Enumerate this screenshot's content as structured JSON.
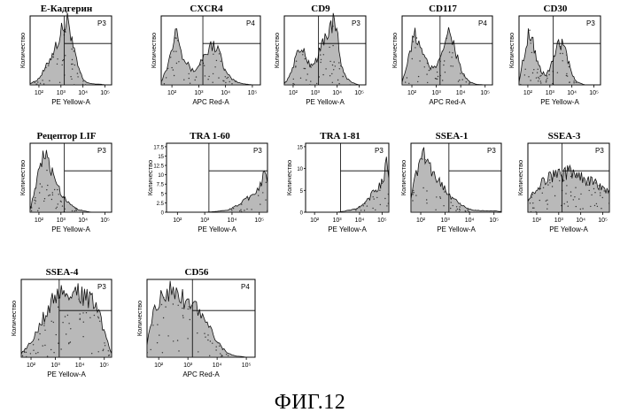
{
  "figure_caption": "ФИГ.12",
  "chart_data": [
    {
      "type": "area",
      "title": "E-Кадгерин",
      "xlabel": "PE Yellow-A",
      "ylabel": "Количество",
      "gate": "P3",
      "x_tick_labels": [
        "10²",
        "10³",
        "10⁴",
        "10⁵"
      ],
      "y_tick_labels": [],
      "xlim": [
        1.6,
        5.3
      ],
      "x": [
        1.6,
        1.8,
        2.0,
        2.2,
        2.4,
        2.6,
        2.8,
        3.0,
        3.1,
        3.2,
        3.3,
        3.4,
        3.5,
        3.6,
        3.8,
        4.0,
        4.2,
        4.4,
        4.6,
        4.8,
        5.0,
        5.3
      ],
      "values": [
        0.02,
        0.05,
        0.1,
        0.2,
        0.32,
        0.48,
        0.62,
        0.78,
        0.92,
        0.85,
        0.98,
        0.9,
        0.7,
        0.5,
        0.25,
        0.08,
        0.03,
        0.02,
        0.01,
        0.01,
        0.0,
        0.0
      ]
    },
    {
      "type": "area",
      "title": "CXCR4",
      "xlabel": "APC Red-A",
      "ylabel": "Количество",
      "gate": "P4",
      "x_tick_labels": [
        "10²",
        "10³",
        "10⁴",
        "10⁵"
      ],
      "y_tick_labels": [],
      "xlim": [
        1.6,
        5.3
      ],
      "x": [
        1.6,
        1.8,
        2.0,
        2.1,
        2.2,
        2.3,
        2.4,
        2.6,
        2.8,
        3.0,
        3.2,
        3.4,
        3.5,
        3.6,
        3.7,
        3.8,
        3.9,
        4.0,
        4.2,
        4.4,
        4.6,
        5.0,
        5.3
      ],
      "values": [
        0.05,
        0.25,
        0.55,
        0.85,
        0.92,
        0.7,
        0.45,
        0.3,
        0.2,
        0.3,
        0.45,
        0.55,
        0.62,
        0.6,
        0.55,
        0.45,
        0.3,
        0.2,
        0.1,
        0.05,
        0.02,
        0.0,
        0.0
      ]
    },
    {
      "type": "area",
      "title": "CD9",
      "xlabel": "PE Yellow-A",
      "ylabel": "Количество",
      "gate": "P3",
      "x_tick_labels": [
        "10²",
        "10³",
        "10⁴",
        "10⁵"
      ],
      "y_tick_labels": [],
      "xlim": [
        1.6,
        5.3
      ],
      "x": [
        1.6,
        1.8,
        2.0,
        2.2,
        2.4,
        2.6,
        2.8,
        3.0,
        3.2,
        3.4,
        3.6,
        3.8,
        3.9,
        4.0,
        4.1,
        4.2,
        4.4,
        4.6,
        4.8,
        5.0,
        5.3
      ],
      "values": [
        0.02,
        0.1,
        0.3,
        0.5,
        0.55,
        0.4,
        0.3,
        0.35,
        0.5,
        0.7,
        0.82,
        0.95,
        0.9,
        0.75,
        0.5,
        0.3,
        0.12,
        0.05,
        0.02,
        0.0,
        0.0
      ]
    },
    {
      "type": "area",
      "title": "CD117",
      "xlabel": "APC Red-A",
      "ylabel": "Количество",
      "gate": "P4",
      "x_tick_labels": [
        "10²",
        "10³",
        "10⁴",
        "10⁵"
      ],
      "y_tick_labels": [],
      "xlim": [
        1.6,
        5.3
      ],
      "x": [
        1.6,
        1.8,
        2.0,
        2.1,
        2.2,
        2.4,
        2.6,
        2.8,
        3.0,
        3.2,
        3.4,
        3.5,
        3.6,
        3.7,
        3.8,
        4.0,
        4.2,
        4.4,
        4.6,
        5.0,
        5.3
      ],
      "values": [
        0.05,
        0.3,
        0.6,
        0.8,
        0.72,
        0.5,
        0.35,
        0.25,
        0.3,
        0.5,
        0.7,
        0.8,
        0.78,
        0.65,
        0.5,
        0.25,
        0.1,
        0.04,
        0.01,
        0.0,
        0.0
      ]
    },
    {
      "type": "area",
      "title": "CD30",
      "xlabel": "PE Yellow-A",
      "ylabel": "Количество",
      "gate": "P3",
      "x_tick_labels": [
        "10²",
        "10³",
        "10⁴",
        "10⁵"
      ],
      "y_tick_labels": [],
      "xlim": [
        1.6,
        5.3
      ],
      "x": [
        1.6,
        1.8,
        2.0,
        2.1,
        2.2,
        2.4,
        2.6,
        2.8,
        3.0,
        3.2,
        3.4,
        3.6,
        3.7,
        3.8,
        4.0,
        4.2,
        4.4,
        4.6,
        5.0,
        5.3
      ],
      "values": [
        0.05,
        0.4,
        0.75,
        0.85,
        0.7,
        0.4,
        0.2,
        0.15,
        0.25,
        0.45,
        0.6,
        0.62,
        0.55,
        0.4,
        0.15,
        0.05,
        0.02,
        0.0,
        0.0,
        0.0
      ]
    },
    {
      "type": "area",
      "title": "Рецептор LIF",
      "xlabel": "PE Yellow-A",
      "ylabel": "Количество",
      "gate": "P3",
      "x_tick_labels": [
        "10²",
        "10³",
        "10⁴",
        "10⁵"
      ],
      "y_tick_labels": [],
      "xlim": [
        1.6,
        5.3
      ],
      "x": [
        1.6,
        1.8,
        2.0,
        2.2,
        2.4,
        2.6,
        2.8,
        3.0,
        3.2,
        3.4,
        3.6,
        3.8,
        4.0,
        4.2,
        4.4,
        4.6,
        5.0,
        5.3
      ],
      "values": [
        0.05,
        0.3,
        0.6,
        0.85,
        0.82,
        0.6,
        0.45,
        0.3,
        0.2,
        0.14,
        0.08,
        0.04,
        0.02,
        0.01,
        0.0,
        0.0,
        0.0,
        0.0
      ]
    },
    {
      "type": "area",
      "title": "TRA 1-60",
      "xlabel": "PE Yellow-A",
      "ylabel": "Количество",
      "gate": "P3",
      "x_tick_labels": [
        "10²",
        "10³",
        "10⁴",
        "10⁵"
      ],
      "y_tick_labels": [
        "0",
        "2.5",
        "5",
        "7.5",
        "10",
        "12.5",
        "15",
        "17.5"
      ],
      "xlim": [
        1.6,
        5.3
      ],
      "x": [
        1.6,
        2.6,
        3.0,
        3.4,
        3.8,
        4.0,
        4.2,
        4.4,
        4.6,
        4.8,
        5.0,
        5.1,
        5.2,
        5.3
      ],
      "values": [
        0.0,
        0.0,
        0.0,
        0.01,
        0.03,
        0.06,
        0.1,
        0.18,
        0.22,
        0.3,
        0.38,
        0.5,
        0.6,
        0.45
      ]
    },
    {
      "type": "area",
      "title": "TRA 1-81",
      "xlabel": "PE Yellow-A",
      "ylabel": "Количество",
      "gate": "P3",
      "x_tick_labels": [
        "10²",
        "10³",
        "10⁴",
        "10⁵"
      ],
      "y_tick_labels": [
        "0",
        "5",
        "10",
        "15"
      ],
      "xlim": [
        1.6,
        5.3
      ],
      "x": [
        1.6,
        2.6,
        3.0,
        3.4,
        3.8,
        4.0,
        4.2,
        4.4,
        4.6,
        4.8,
        5.0,
        5.1,
        5.2,
        5.3
      ],
      "values": [
        0.0,
        0.0,
        0.0,
        0.02,
        0.05,
        0.08,
        0.12,
        0.2,
        0.3,
        0.38,
        0.45,
        0.6,
        0.75,
        0.5
      ]
    },
    {
      "type": "area",
      "title": "SSEA-1",
      "xlabel": "PE Yellow-A",
      "ylabel": "Количество",
      "gate": "P3",
      "x_tick_labels": [
        "10²",
        "10³",
        "10⁴",
        "10⁵"
      ],
      "y_tick_labels": [],
      "xlim": [
        1.6,
        5.3
      ],
      "x": [
        1.6,
        1.8,
        2.0,
        2.2,
        2.4,
        2.6,
        2.8,
        3.0,
        3.2,
        3.4,
        3.6,
        3.8,
        4.0,
        4.2,
        4.6,
        5.0,
        5.3
      ],
      "values": [
        0.25,
        0.55,
        0.85,
        0.9,
        0.7,
        0.55,
        0.45,
        0.35,
        0.25,
        0.2,
        0.12,
        0.08,
        0.05,
        0.03,
        0.02,
        0.02,
        0.01
      ]
    },
    {
      "type": "area",
      "title": "SSEA-3",
      "xlabel": "PE Yellow-A",
      "ylabel": "Количество",
      "gate": "P3",
      "x_tick_labels": [
        "10²",
        "10³",
        "10⁴",
        "10⁵"
      ],
      "y_tick_labels": [],
      "xlim": [
        1.6,
        5.3
      ],
      "x": [
        1.6,
        1.8,
        2.0,
        2.2,
        2.4,
        2.6,
        2.8,
        3.0,
        3.2,
        3.4,
        3.6,
        3.8,
        4.0,
        4.2,
        4.4,
        4.6,
        4.8,
        5.0,
        5.3
      ],
      "values": [
        0.2,
        0.3,
        0.35,
        0.45,
        0.5,
        0.55,
        0.55,
        0.6,
        0.55,
        0.62,
        0.6,
        0.58,
        0.55,
        0.5,
        0.45,
        0.5,
        0.42,
        0.35,
        0.3
      ]
    },
    {
      "type": "area",
      "title": "SSEA-4",
      "xlabel": "PE Yellow-A",
      "ylabel": "Количество",
      "gate": "P3",
      "x_tick_labels": [
        "10²",
        "10³",
        "10⁴",
        "10⁵"
      ],
      "y_tick_labels": [],
      "xlim": [
        1.6,
        5.3
      ],
      "x": [
        1.6,
        1.8,
        2.0,
        2.2,
        2.4,
        2.6,
        2.8,
        3.0,
        3.2,
        3.4,
        3.6,
        3.8,
        4.0,
        4.2,
        4.4,
        4.6,
        4.8,
        5.0,
        5.2,
        5.3
      ],
      "values": [
        0.05,
        0.12,
        0.22,
        0.32,
        0.45,
        0.6,
        0.72,
        0.8,
        0.85,
        0.88,
        0.9,
        0.88,
        0.85,
        0.82,
        0.78,
        0.7,
        0.55,
        0.35,
        0.12,
        0.05
      ]
    },
    {
      "type": "area",
      "title": "CD56",
      "xlabel": "APC Red-A",
      "ylabel": "Количество",
      "gate": "P4",
      "x_tick_labels": [
        "10²",
        "10³",
        "10⁴",
        "10⁵"
      ],
      "y_tick_labels": [],
      "xlim": [
        1.6,
        5.3
      ],
      "x": [
        1.6,
        1.8,
        2.0,
        2.2,
        2.4,
        2.6,
        2.8,
        3.0,
        3.2,
        3.4,
        3.6,
        3.8,
        4.0,
        4.2,
        4.4,
        4.6,
        5.0,
        5.3
      ],
      "values": [
        0.2,
        0.55,
        0.8,
        0.9,
        0.92,
        0.85,
        0.8,
        0.75,
        0.7,
        0.6,
        0.5,
        0.35,
        0.22,
        0.12,
        0.05,
        0.02,
        0.0,
        0.0
      ]
    }
  ]
}
